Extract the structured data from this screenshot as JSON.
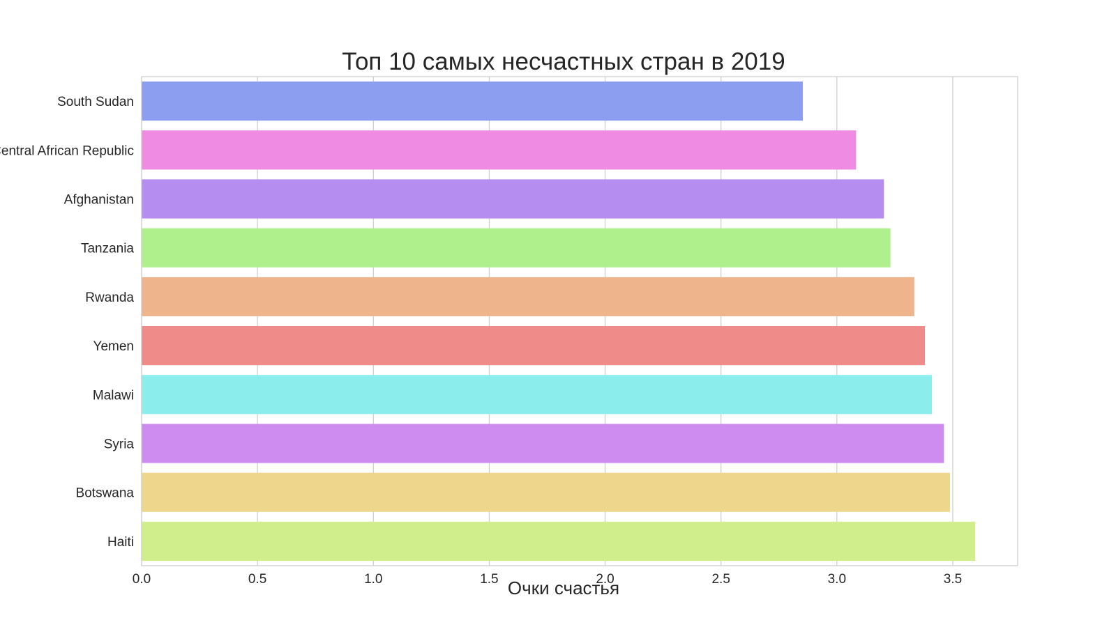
{
  "chart_data": {
    "type": "bar",
    "orientation": "horizontal",
    "title": "Топ 10 самых несчастных стран в 2019",
    "xlabel": "Очки счастья",
    "ylabel": "",
    "xlim": [
      0,
      3.78
    ],
    "xticks": [
      "0.0",
      "0.5",
      "1.0",
      "1.5",
      "2.0",
      "2.5",
      "3.0",
      "3.5"
    ],
    "grid": true,
    "categories": [
      "South Sudan",
      "Central African Republic",
      "Afghanistan",
      "Tanzania",
      "Rwanda",
      "Yemen",
      "Malawi",
      "Syria",
      "Botswana",
      "Haiti"
    ],
    "values": [
      2.853,
      3.083,
      3.203,
      3.231,
      3.334,
      3.38,
      3.41,
      3.462,
      3.488,
      3.597
    ],
    "colors": [
      "#8c9ef0",
      "#ef8be2",
      "#b58cf0",
      "#aff08c",
      "#eeb58c",
      "#ef8c8a",
      "#8beeec",
      "#ce8cf0",
      "#eed78c",
      "#d1ee8c"
    ]
  }
}
